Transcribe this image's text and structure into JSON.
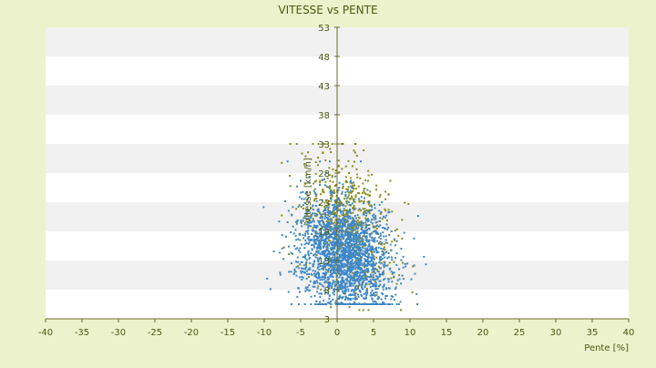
{
  "colors": {
    "background": "#ecf2cb",
    "band_light": "#ffffff",
    "band_dark": "#f1f1f1",
    "axis": "#6b6b2a",
    "text": "#4a5a12",
    "series_olive": "#8c8c1a",
    "series_blue": "#3d87c9"
  },
  "chart_data": {
    "type": "scatter",
    "title": "VITESSE vs PENTE",
    "xlabel": "Pente [%]",
    "ylabel": "Vitesse [km/h]",
    "xlim": [
      -40,
      40
    ],
    "ylim": [
      3,
      53
    ],
    "xticks": [
      -40,
      -35,
      -30,
      -25,
      -20,
      -15,
      -10,
      -5,
      0,
      5,
      10,
      15,
      20,
      25,
      30,
      35,
      40
    ],
    "yticks": [
      3,
      8,
      13,
      18,
      23,
      28,
      33,
      38,
      43,
      48,
      53
    ],
    "grid": "alternating horizontal bands",
    "legend": "none",
    "series": [
      {
        "color": "#8c8c1a",
        "cloud": {
          "x_mean": 1.5,
          "x_sd": 3.0,
          "x_range": [
            -13,
            13
          ],
          "y_mean": 19,
          "y_sd": 5.5,
          "y_range": [
            4.5,
            33
          ],
          "slope": -0.45,
          "count": 650
        }
      },
      {
        "color": "#3d87c9",
        "cloud": {
          "x_mean": 1.0,
          "x_sd": 3.2,
          "x_range": [
            -14,
            15
          ],
          "y_mean": 14,
          "y_sd": 5.0,
          "y_range": [
            5.5,
            30
          ],
          "slope": -0.35,
          "count": 2200
        }
      }
    ]
  }
}
